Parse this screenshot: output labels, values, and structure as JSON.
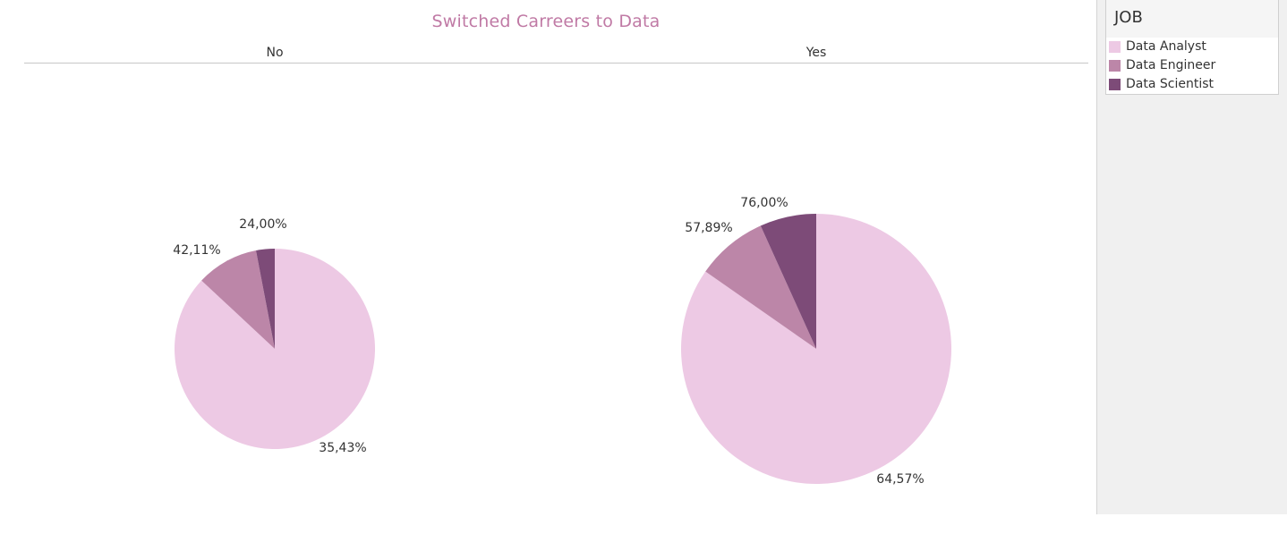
{
  "chart_data": {
    "type": "pie",
    "title": "Switched Carreers to Data",
    "legend": {
      "title": "JOB",
      "placement": "right",
      "items": [
        {
          "label": "Data Analyst",
          "color": "#edc9e4"
        },
        {
          "label": "Data Engineer",
          "color": "#bc86a8"
        },
        {
          "label": "Data Scientist",
          "color": "#7d4b78"
        }
      ]
    },
    "panels": [
      {
        "header": "No",
        "slices": [
          {
            "category": "Data Analyst",
            "share_of_pie": 0.8695,
            "label": "35,43%"
          },
          {
            "category": "Data Engineer",
            "share_of_pie": 0.1005,
            "label": "42,11%"
          },
          {
            "category": "Data Scientist",
            "share_of_pie": 0.03,
            "label": "24,00%"
          }
        ]
      },
      {
        "header": "Yes",
        "slices": [
          {
            "category": "Data Analyst",
            "share_of_pie": 0.847,
            "label": "64,57%"
          },
          {
            "category": "Data Engineer",
            "share_of_pie": 0.0855,
            "label": "57,89%"
          },
          {
            "category": "Data Scientist",
            "share_of_pie": 0.0675,
            "label": "76,00%"
          }
        ]
      }
    ]
  }
}
